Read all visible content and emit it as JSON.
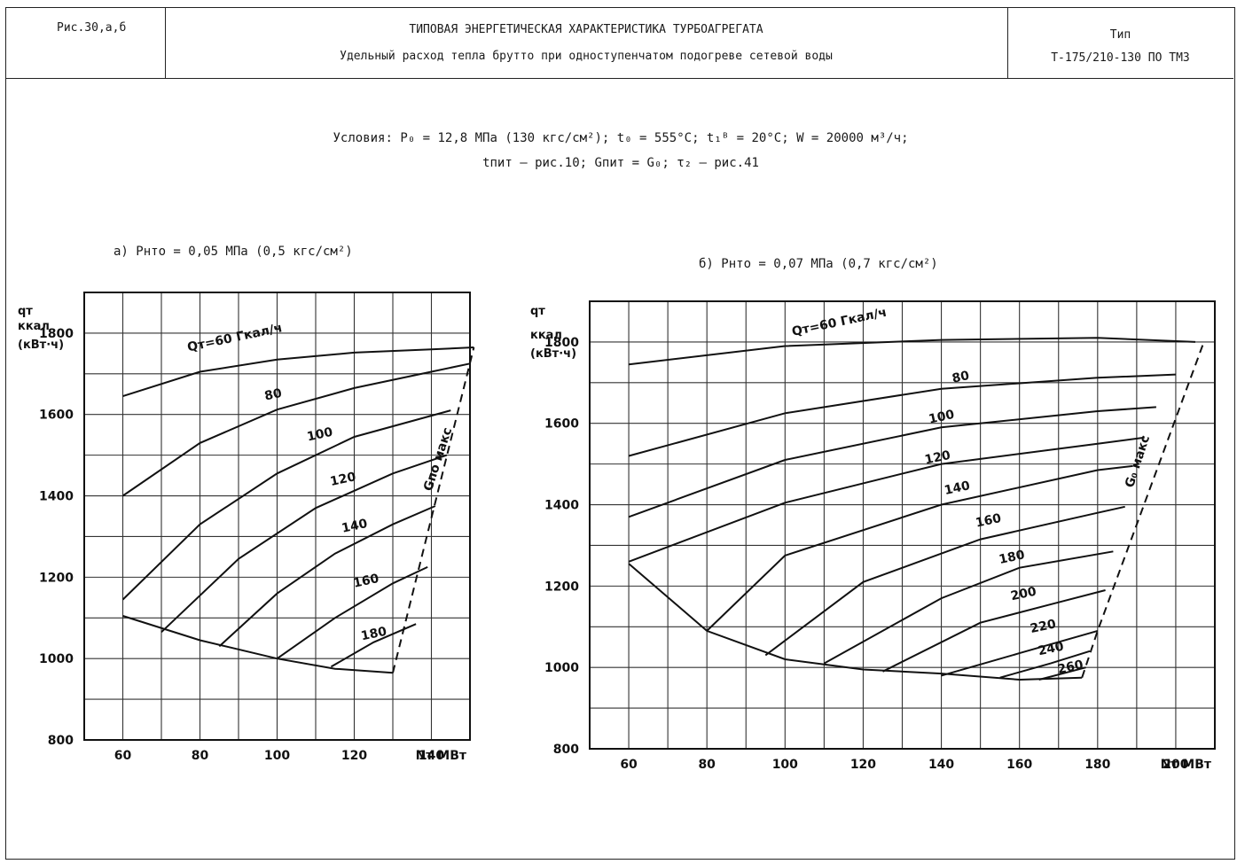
{
  "header": {
    "figure": "Рис.30,а,б",
    "title": "ТИПОВАЯ ЭНЕРГЕТИЧЕСКАЯ ХАРАКТЕРИСТИКА ТУРБОАГРЕГАТА",
    "subtitle": "Удельный расход тепла брутто при одноступенчатом подогреве сетевой воды",
    "type_label": "Тип",
    "type_value": "Т-175/210-130 ПО ТМЗ"
  },
  "conditions": {
    "line1": "Условия: P₀ = 12,8 МПа (130 кгс/см²); t₀ = 555°С; t₁ᴮ = 20°С; W = 20000 м³/ч;",
    "line2": "tпит – рис.10; Gпит = G₀; τ₂ – рис.41"
  },
  "chart_data": [
    {
      "type": "line",
      "title": "а) Pнто = 0,05 МПа (0,5 кгс/см²)",
      "ylabel_lines": [
        "qт",
        "ккал",
        "(кВт·ч)"
      ],
      "xlabel": "Nт МВт",
      "xlim": [
        50,
        150
      ],
      "ylim": [
        800,
        1900
      ],
      "xticks": [
        60,
        80,
        100,
        120,
        140
      ],
      "yticks": [
        800,
        1000,
        1200,
        1400,
        1600,
        1800
      ],
      "grid": true,
      "series": [
        {
          "name": "Qт=60 Гкал/ч",
          "label_at": [
            77,
            1755
          ],
          "x": [
            60,
            80,
            100,
            120,
            140,
            151
          ],
          "y": [
            1645,
            1705,
            1735,
            1752,
            1760,
            1765
          ]
        },
        {
          "name": "80",
          "label_at": [
            97,
            1635
          ],
          "x": [
            60,
            80,
            100,
            120,
            140,
            150
          ],
          "y": [
            1400,
            1530,
            1612,
            1665,
            1705,
            1725
          ]
        },
        {
          "name": "100",
          "label_at": [
            108,
            1535
          ],
          "x": [
            60,
            80,
            100,
            120,
            145
          ],
          "y": [
            1145,
            1330,
            1455,
            1545,
            1610
          ]
        },
        {
          "name": "120",
          "label_at": [
            114,
            1425
          ],
          "x": [
            70,
            90,
            110,
            130,
            144
          ],
          "y": [
            1065,
            1245,
            1370,
            1455,
            1500
          ]
        },
        {
          "name": "140",
          "label_at": [
            117,
            1310
          ],
          "x": [
            85,
            100,
            115,
            130,
            141
          ],
          "y": [
            1030,
            1160,
            1258,
            1330,
            1375
          ]
        },
        {
          "name": "160",
          "label_at": [
            120,
            1175
          ],
          "x": [
            100,
            115,
            130,
            139
          ],
          "y": [
            1000,
            1100,
            1185,
            1225
          ]
        },
        {
          "name": "180",
          "label_at": [
            122,
            1045
          ],
          "x": [
            114,
            125,
            136
          ],
          "y": [
            980,
            1040,
            1085
          ]
        },
        {
          "name": "boundary",
          "x": [
            60,
            80,
            100,
            115,
            130
          ],
          "y": [
            1105,
            1045,
            1000,
            975,
            965
          ]
        }
      ],
      "max_line": {
        "name": "Gпо макс",
        "label_at": [
          140,
          1410
        ],
        "x": [
          130,
          151
        ],
        "y": [
          965,
          1765
        ]
      }
    },
    {
      "type": "line",
      "title": "б) Pнто = 0,07 МПа (0,7 кгс/см²)",
      "ylabel_lines": [
        "qт",
        "ккал",
        "(кВт·ч)"
      ],
      "xlabel": "Nт МВт",
      "xlim": [
        50,
        210
      ],
      "ylim": [
        800,
        1900
      ],
      "xticks": [
        60,
        80,
        100,
        120,
        140,
        160,
        180,
        200
      ],
      "yticks": [
        800,
        1000,
        1200,
        1400,
        1600,
        1800
      ],
      "grid": true,
      "series": [
        {
          "name": "Qт=60 Гкал/ч",
          "label_at": [
            102,
            1815
          ],
          "x": [
            60,
            100,
            140,
            180,
            205
          ],
          "y": [
            1745,
            1790,
            1805,
            1810,
            1800
          ]
        },
        {
          "name": "80",
          "label_at": [
            143,
            1700
          ],
          "x": [
            60,
            100,
            140,
            180,
            200
          ],
          "y": [
            1520,
            1625,
            1685,
            1712,
            1720
          ]
        },
        {
          "name": "100",
          "label_at": [
            137,
            1600
          ],
          "x": [
            60,
            100,
            140,
            180,
            195
          ],
          "y": [
            1370,
            1510,
            1590,
            1630,
            1640
          ]
        },
        {
          "name": "120",
          "label_at": [
            136,
            1500
          ],
          "x": [
            60,
            100,
            140,
            180,
            192
          ],
          "y": [
            1260,
            1405,
            1500,
            1550,
            1565
          ]
        },
        {
          "name": "140",
          "label_at": [
            141,
            1425
          ],
          "x": [
            80,
            100,
            140,
            180,
            189
          ],
          "y": [
            1090,
            1275,
            1400,
            1485,
            1495
          ]
        },
        {
          "name": "160",
          "label_at": [
            149,
            1345
          ],
          "x": [
            95,
            120,
            150,
            180,
            187
          ],
          "y": [
            1030,
            1210,
            1315,
            1380,
            1395
          ]
        },
        {
          "name": "180",
          "label_at": [
            155,
            1255
          ],
          "x": [
            110,
            140,
            160,
            184
          ],
          "y": [
            1010,
            1170,
            1245,
            1285
          ]
        },
        {
          "name": "200",
          "label_at": [
            158,
            1165
          ],
          "x": [
            125,
            150,
            170,
            182
          ],
          "y": [
            990,
            1110,
            1160,
            1190
          ]
        },
        {
          "name": "220",
          "label_at": [
            163,
            1085
          ],
          "x": [
            140,
            160,
            180
          ],
          "y": [
            980,
            1035,
            1090
          ]
        },
        {
          "name": "240",
          "label_at": [
            165,
            1030
          ],
          "x": [
            155,
            168,
            178
          ],
          "y": [
            975,
            1010,
            1040
          ]
        },
        {
          "name": "260",
          "label_at": [
            170,
            985
          ],
          "x": [
            165,
            177
          ],
          "y": [
            970,
            1000
          ]
        },
        {
          "name": "boundary",
          "x": [
            60,
            80,
            100,
            120,
            140,
            160,
            176
          ],
          "y": [
            1255,
            1090,
            1020,
            995,
            985,
            970,
            975
          ]
        }
      ],
      "max_line": {
        "name": "G₀ макс",
        "label_at": [
          189,
          1440
        ],
        "x": [
          176,
          180,
          207
        ],
        "y": [
          975,
          1090,
          1795
        ]
      }
    }
  ]
}
